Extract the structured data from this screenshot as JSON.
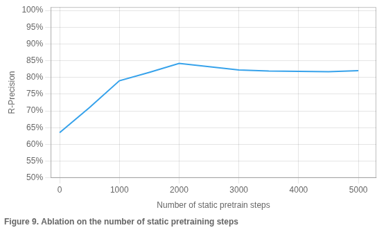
{
  "chart_data": {
    "type": "line",
    "x": [
      0,
      500,
      1000,
      1500,
      2000,
      2500,
      3000,
      3500,
      4000,
      4500,
      5000
    ],
    "values": [
      63.5,
      71.0,
      79.0,
      81.5,
      84.2,
      83.2,
      82.2,
      81.9,
      81.8,
      81.7,
      82.0
    ],
    "xlabel": "Number of static pretrain steps",
    "ylabel": "R-Precision",
    "caption": "Figure 9. Ablation on the number of static pretraining steps",
    "xlim": [
      -150,
      5300
    ],
    "ylim": [
      50,
      101
    ],
    "xticks": [
      0,
      1000,
      2000,
      3000,
      4000,
      5000
    ],
    "yticks": [
      {
        "value": 50,
        "label": "50%"
      },
      {
        "value": 55,
        "label": "55%"
      },
      {
        "value": 60,
        "label": "60%"
      },
      {
        "value": 65,
        "label": "65%"
      },
      {
        "value": 70,
        "label": "70%"
      },
      {
        "value": 75,
        "label": "75%"
      },
      {
        "value": 80,
        "label": "80%"
      },
      {
        "value": 85,
        "label": "85%"
      },
      {
        "value": 90,
        "label": "90%"
      },
      {
        "value": 95,
        "label": "95%"
      },
      {
        "value": 100,
        "label": "100%"
      }
    ],
    "grid": true
  }
}
